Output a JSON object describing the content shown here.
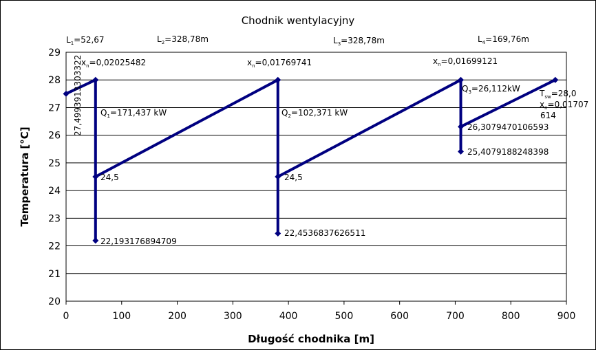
{
  "chart_data": {
    "type": "line",
    "title": "Chodnik wentylacyjny",
    "xlabel": "Długość chodnika [m]",
    "ylabel": "Temperatura [°C]",
    "xlim": [
      0,
      900
    ],
    "ylim": [
      20,
      29
    ],
    "xticks": [
      "0",
      "100",
      "200",
      "300",
      "400",
      "500",
      "600",
      "700",
      "800",
      "900"
    ],
    "yticks": [
      "20",
      "21",
      "22",
      "23",
      "24",
      "25",
      "26",
      "27",
      "28",
      "29"
    ],
    "grid": "horizontal",
    "legend": "none",
    "series": [
      {
        "color": "#000080",
        "points": [
          [
            0,
            27.5
          ],
          [
            53,
            28.0
          ],
          [
            53,
            22.19
          ],
          [
            53,
            24.5
          ],
          [
            381,
            28.0
          ],
          [
            381,
            22.45
          ],
          [
            381,
            24.5
          ],
          [
            710,
            28.0
          ],
          [
            710,
            25.41
          ],
          [
            710,
            26.31
          ],
          [
            880,
            28.0
          ]
        ],
        "markers": [
          [
            0,
            27.5
          ],
          [
            53,
            28.0
          ],
          [
            53,
            24.5
          ],
          [
            53,
            22.19
          ],
          [
            381,
            28.0
          ],
          [
            381,
            24.5
          ],
          [
            381,
            22.45
          ],
          [
            710,
            28.0
          ],
          [
            710,
            26.31
          ],
          [
            710,
            25.41
          ],
          [
            880,
            28.0
          ]
        ]
      }
    ],
    "annotations": [
      {
        "text": "L",
        "sub": "1",
        "suffix": "=52,67"
      },
      {
        "text": "L",
        "sub": "2",
        "suffix": "=328,78m"
      },
      {
        "text": "L",
        "sub": "3",
        "suffix": "=328,78m"
      },
      {
        "text": "L",
        "sub": "4",
        "suffix": "=169,76m"
      },
      {
        "text": "x",
        "sub": "n",
        "suffix": "=0,02025482"
      },
      {
        "text": "x",
        "sub": "n",
        "suffix": "=0,01769741"
      },
      {
        "text": "x",
        "sub": "n",
        "suffix": "=0,01699121"
      },
      {
        "text": "Q",
        "sub": "1",
        "suffix": "=171,437 kW"
      },
      {
        "text": "Q",
        "sub": "2",
        "suffix": "=102,371 kW"
      },
      {
        "text": "Q",
        "sub": "3",
        "suffix": "=26,112kW"
      },
      {
        "text": "T",
        "sub": "sw",
        "suffix": "=28,0"
      },
      {
        "text": "x",
        "sub": "n",
        "suffix": "=0,01707"
      },
      {
        "text": "614",
        "sub": "",
        "suffix": ""
      },
      {
        "text": "27,4993913303322",
        "sub": "",
        "suffix": ""
      },
      {
        "text": "24,5",
        "sub": "",
        "suffix": ""
      },
      {
        "text": "24,5",
        "sub": "",
        "suffix": ""
      },
      {
        "text": "22,193176894709",
        "sub": "",
        "suffix": ""
      },
      {
        "text": "22,4536837626511",
        "sub": "",
        "suffix": ""
      },
      {
        "text": "26,3079470106593",
        "sub": "",
        "suffix": ""
      },
      {
        "text": "25,4079188248398",
        "sub": "",
        "suffix": ""
      }
    ]
  }
}
